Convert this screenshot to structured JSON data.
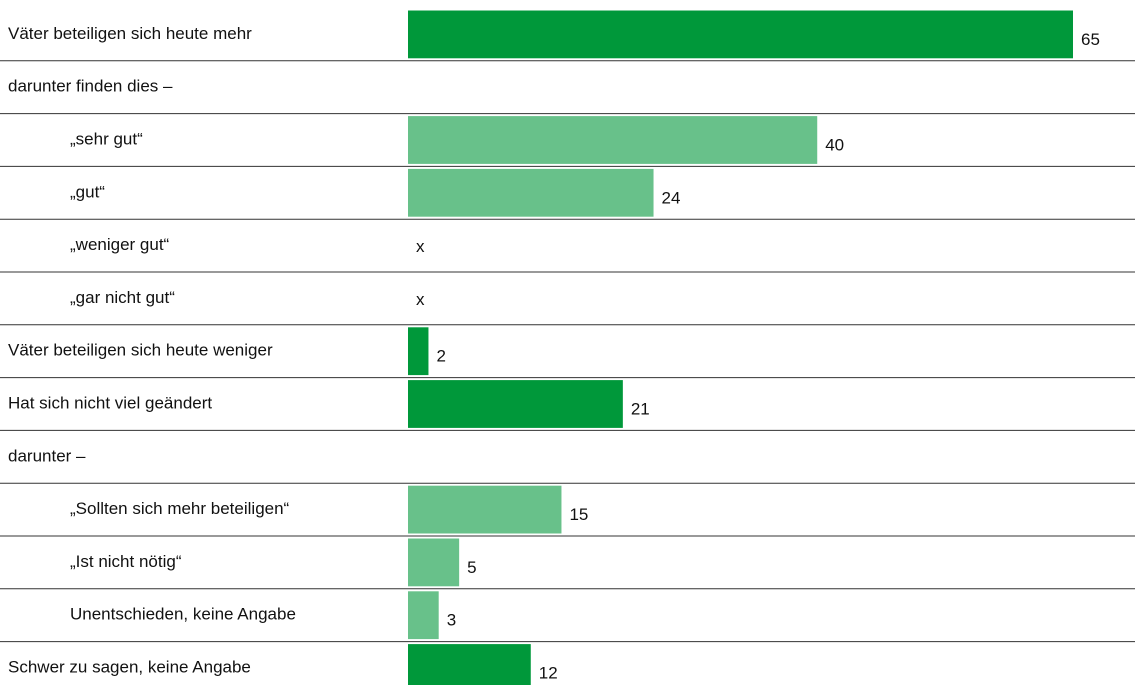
{
  "chart_data": {
    "type": "bar",
    "categories": [
      "Väter beteiligen sich heute mehr",
      "darunter finden dies –",
      "„sehr gut“",
      "„gut“",
      "„weniger gut“",
      "„gar nicht gut“",
      "Väter beteiligen sich heute weniger",
      "Hat sich nicht viel geändert",
      "darunter –",
      "„Sollten sich mehr beteiligen“",
      "„Ist nicht nötig“",
      "Unentschieden, keine Angabe",
      "Schwer zu sagen, keine Angabe"
    ],
    "values": [
      65,
      null,
      40,
      24,
      null,
      null,
      2,
      21,
      null,
      15,
      5,
      3,
      12
    ],
    "value_labels": [
      null,
      null,
      null,
      null,
      "x",
      "x",
      null,
      null,
      null,
      null,
      null,
      null,
      null
    ],
    "colors": [
      "#00983a",
      null,
      "#68c18a",
      "#68c18a",
      "#68c18a",
      "#68c18a",
      "#00983a",
      "#00983a",
      null,
      "#68c18a",
      "#68c18a",
      "#68c18a",
      "#00983a"
    ],
    "sub_color": "#68c18a",
    "xlim": [
      0,
      65
    ]
  }
}
